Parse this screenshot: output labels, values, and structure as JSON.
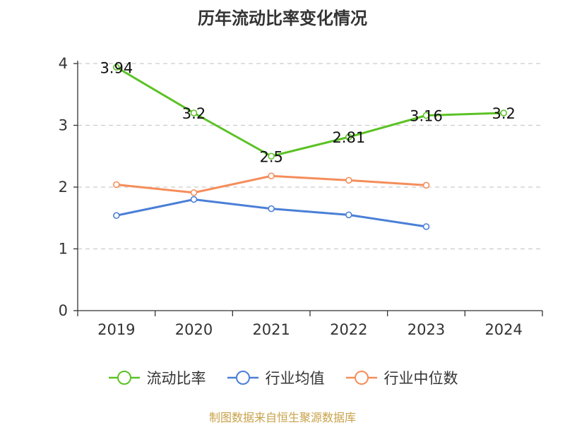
{
  "chart_data": {
    "type": "line",
    "title": "历年流动比率变化情况",
    "categories": [
      "2019",
      "2020",
      "2021",
      "2022",
      "2023",
      "2024"
    ],
    "ylim": [
      0,
      4
    ],
    "yticks": [
      "0",
      "1",
      "2",
      "3",
      "4"
    ],
    "grid": true,
    "legend_position": "bottom",
    "series": [
      {
        "name": "流动比率",
        "color": "#5bc225",
        "values": [
          3.94,
          3.2,
          2.5,
          2.81,
          3.16,
          3.2
        ],
        "labels": [
          "3.94",
          "3.2",
          "2.5",
          "2.81",
          "3.16",
          "3.2"
        ]
      },
      {
        "name": "行业均值",
        "color": "#4a7fd6",
        "values": [
          1.54,
          1.8,
          1.65,
          1.55,
          1.36,
          null
        ]
      },
      {
        "name": "行业中位数",
        "color": "#f58d5a",
        "values": [
          2.04,
          1.91,
          2.18,
          2.11,
          2.03,
          null
        ]
      }
    ]
  },
  "source": "制图数据来自恒生聚源数据库"
}
